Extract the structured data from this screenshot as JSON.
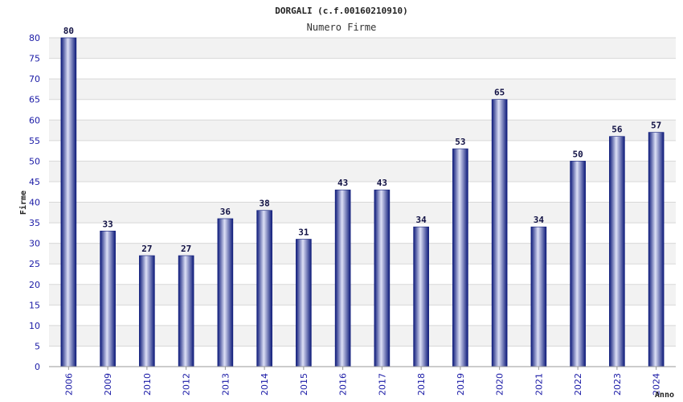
{
  "chart_data": {
    "type": "bar",
    "title": "DORGALI (c.f.00160210910)",
    "subtitle": "Numero Firme",
    "xlabel": "Anno",
    "ylabel": "Firme",
    "ylim": [
      0,
      80
    ],
    "ytick_step": 5,
    "grid": true,
    "categories": [
      "2006",
      "2009",
      "2010",
      "2012",
      "2013",
      "2014",
      "2015",
      "2016",
      "2017",
      "2018",
      "2019",
      "2020",
      "2021",
      "2022",
      "2023",
      "2024"
    ],
    "values": [
      80,
      33,
      27,
      27,
      36,
      38,
      31,
      43,
      43,
      34,
      53,
      65,
      34,
      50,
      56,
      57
    ],
    "colors": {
      "bar_dark": "#0d1a7a",
      "bar_light": "#dde0f6",
      "band_alt": "#f2f2f2",
      "grid": "#d8d8d8",
      "tick_text": "#1a1aa6"
    }
  }
}
